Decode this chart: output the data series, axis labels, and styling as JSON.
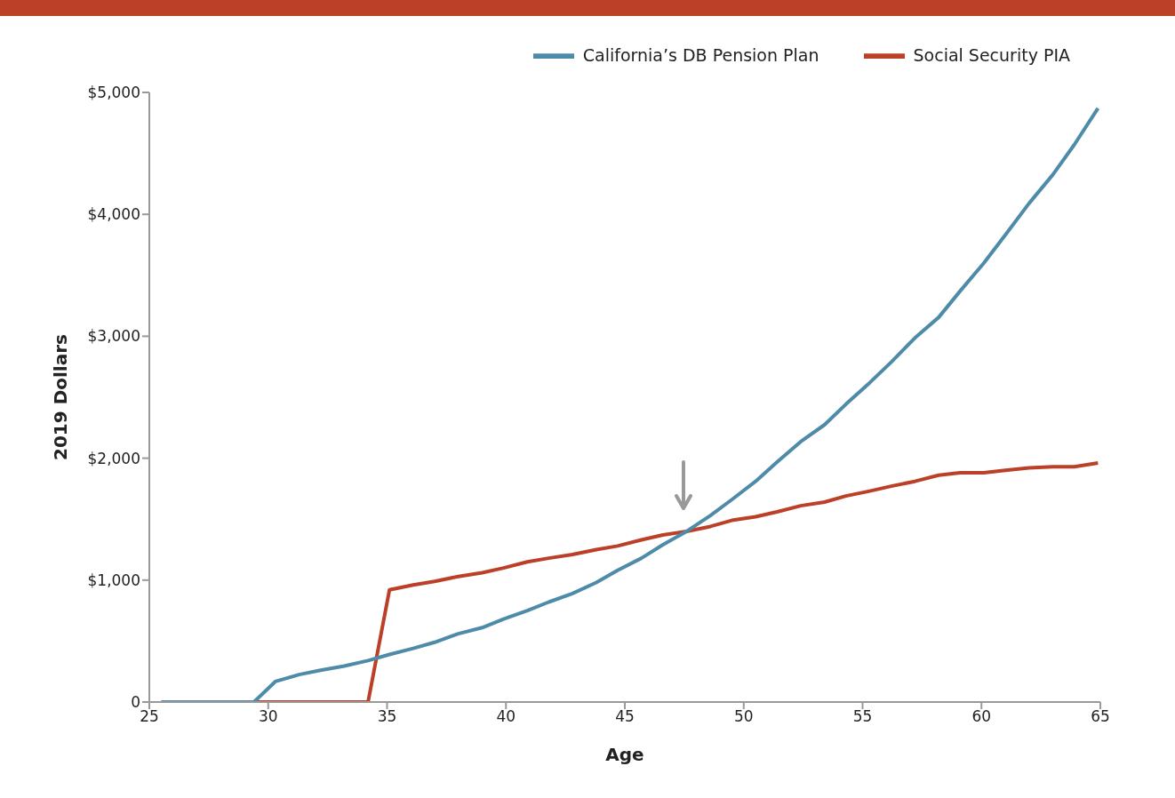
{
  "chart_data": {
    "type": "line",
    "xlabel": "Age",
    "ylabel": "2019 Dollars",
    "x": [
      25.5,
      26.5,
      27.4,
      28.4,
      29.4,
      30.3,
      31.3,
      32.2,
      33.2,
      34.2,
      35.1,
      36.1,
      37.0,
      38.0,
      39.0,
      39.9,
      40.9,
      41.8,
      42.8,
      43.8,
      44.7,
      45.7,
      46.6,
      47.6,
      48.6,
      49.5,
      50.5,
      51.4,
      52.4,
      53.4,
      54.3,
      55.3,
      56.2,
      57.2,
      58.2,
      59.1,
      60.1,
      61.0,
      62.0,
      63.0,
      63.9,
      64.9
    ],
    "series": [
      {
        "name": "California’s DB Pension Plan",
        "color": "#4e8ba8",
        "values": [
          0,
          0,
          0,
          0,
          0,
          168,
          225,
          260,
          295,
          340,
          390,
          440,
          490,
          560,
          610,
          680,
          750,
          820,
          890,
          980,
          1080,
          1180,
          1290,
          1400,
          1530,
          1660,
          1810,
          1968,
          2136,
          2274,
          2443,
          2619,
          2787,
          2986,
          3155,
          3370,
          3600,
          3830,
          4090,
          4325,
          4570,
          4870
        ]
      },
      {
        "name": "Social Security PIA",
        "color": "#bc4027",
        "values": [
          null,
          null,
          null,
          null,
          0,
          0,
          0,
          0,
          0,
          0,
          920,
          960,
          990,
          1030,
          1060,
          1100,
          1150,
          1180,
          1210,
          1250,
          1280,
          1330,
          1370,
          1400,
          1440,
          1490,
          1520,
          1560,
          1610,
          1640,
          1690,
          1730,
          1770,
          1810,
          1860,
          1880,
          1880,
          1900,
          1920,
          1930,
          1930,
          1960
        ]
      }
    ],
    "xlim": [
      25,
      65
    ],
    "xticks": [
      25,
      30,
      35,
      40,
      45,
      50,
      55,
      60,
      65
    ],
    "ylim": [
      0,
      5000
    ],
    "yticks": [
      {
        "value": 0,
        "label": "0"
      },
      {
        "value": 1000,
        "label": "$1,000"
      },
      {
        "value": 2000,
        "label": "$2,000"
      },
      {
        "value": 3000,
        "label": "$3,000"
      },
      {
        "value": 4000,
        "label": "$4,000"
      },
      {
        "value": 5000,
        "label": "$5,000"
      }
    ],
    "grid": false,
    "legend": "top right",
    "marker": "none",
    "line_style": "solid"
  }
}
